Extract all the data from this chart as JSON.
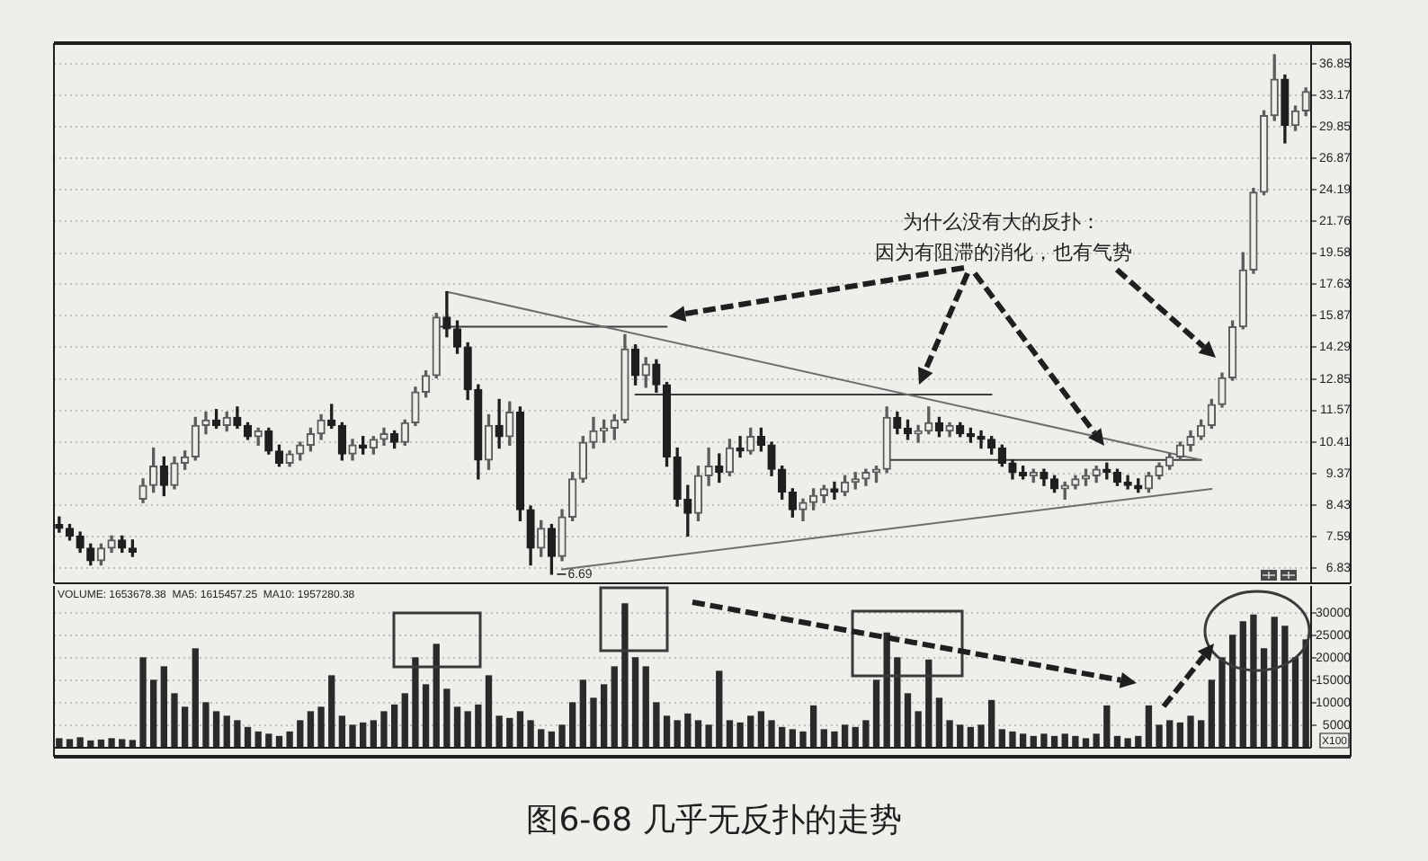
{
  "chart_data": [
    {
      "type": "candlestick",
      "log": true,
      "grid": "y",
      "tick_labels": "y",
      "categories": [
        null,
        null,
        null,
        null,
        null,
        null,
        null,
        null,
        null,
        null,
        null,
        null,
        null,
        null,
        null,
        null,
        null,
        null,
        null,
        null,
        null,
        null,
        null,
        null,
        null,
        null,
        null,
        null,
        null,
        null,
        null,
        null,
        null,
        null,
        null,
        null,
        null,
        null,
        null,
        null,
        null,
        null,
        null,
        null,
        null,
        null,
        null,
        null,
        null,
        null,
        null,
        null,
        null,
        null,
        null,
        null,
        null,
        null,
        null,
        null,
        null,
        null,
        null,
        null,
        null,
        null,
        null,
        null,
        null,
        null,
        null,
        null,
        null,
        null,
        null,
        null,
        null,
        null,
        null,
        null,
        null,
        null,
        null,
        null,
        null,
        null,
        null,
        null,
        null,
        null,
        null,
        null,
        null,
        null,
        null,
        null,
        null,
        null,
        null,
        null,
        null,
        null,
        null,
        null,
        null,
        null,
        null,
        null,
        null,
        null,
        null,
        null,
        null,
        null,
        null,
        null,
        null,
        null,
        null,
        null
      ],
      "ohlc": [
        [
          7.9,
          8.1,
          7.7,
          7.8
        ],
        [
          7.8,
          7.9,
          7.5,
          7.6
        ],
        [
          7.6,
          7.7,
          7.2,
          7.3
        ],
        [
          7.3,
          7.4,
          6.9,
          7.0
        ],
        [
          7.0,
          7.4,
          6.9,
          7.3
        ],
        [
          7.3,
          7.6,
          7.2,
          7.5
        ],
        [
          7.5,
          7.6,
          7.2,
          7.3
        ],
        [
          7.3,
          7.5,
          7.1,
          7.2
        ],
        [
          8.6,
          9.2,
          8.5,
          9.0
        ],
        [
          9.0,
          10.2,
          8.8,
          9.6
        ],
        [
          9.6,
          9.9,
          8.7,
          9.0
        ],
        [
          9.0,
          9.9,
          8.9,
          9.7
        ],
        [
          9.7,
          10.1,
          9.5,
          9.9
        ],
        [
          9.9,
          11.3,
          9.8,
          11.0
        ],
        [
          11.0,
          11.5,
          10.7,
          11.2
        ],
        [
          11.2,
          11.6,
          10.9,
          11.0
        ],
        [
          11.0,
          11.5,
          10.8,
          11.3
        ],
        [
          11.3,
          11.7,
          10.9,
          11.0
        ],
        [
          11.0,
          11.1,
          10.5,
          10.6
        ],
        [
          10.6,
          10.9,
          10.3,
          10.8
        ],
        [
          10.8,
          10.9,
          10.0,
          10.1
        ],
        [
          10.1,
          10.3,
          9.6,
          9.7
        ],
        [
          9.7,
          10.1,
          9.6,
          10.0
        ],
        [
          10.0,
          10.4,
          9.8,
          10.3
        ],
        [
          10.3,
          10.9,
          10.1,
          10.7
        ],
        [
          10.7,
          11.4,
          10.5,
          11.2
        ],
        [
          11.2,
          11.8,
          10.9,
          11.0
        ],
        [
          11.0,
          11.1,
          9.8,
          10.0
        ],
        [
          10.0,
          10.5,
          9.8,
          10.3
        ],
        [
          10.3,
          10.6,
          10.0,
          10.2
        ],
        [
          10.2,
          10.6,
          10.0,
          10.5
        ],
        [
          10.5,
          10.9,
          10.3,
          10.7
        ],
        [
          10.7,
          10.8,
          10.2,
          10.4
        ],
        [
          10.4,
          11.2,
          10.3,
          11.1
        ],
        [
          11.1,
          12.5,
          11.0,
          12.3
        ],
        [
          12.3,
          13.2,
          12.1,
          13.0
        ],
        [
          13.0,
          16.0,
          12.9,
          15.8
        ],
        [
          15.8,
          17.2,
          14.8,
          15.2
        ],
        [
          15.2,
          15.6,
          14.0,
          14.3
        ],
        [
          14.3,
          14.5,
          12.0,
          12.4
        ],
        [
          12.4,
          12.6,
          9.2,
          9.8
        ],
        [
          9.8,
          11.4,
          9.5,
          11.0
        ],
        [
          11.0,
          12.0,
          10.2,
          10.6
        ],
        [
          10.6,
          11.9,
          10.3,
          11.5
        ],
        [
          11.5,
          11.7,
          8.0,
          8.3
        ],
        [
          8.3,
          8.4,
          6.9,
          7.3
        ],
        [
          7.3,
          8.0,
          7.1,
          7.8
        ],
        [
          7.8,
          7.9,
          6.69,
          7.1
        ],
        [
          7.1,
          8.3,
          7.0,
          8.1
        ],
        [
          8.1,
          9.4,
          8.0,
          9.2
        ],
        [
          9.2,
          10.6,
          9.1,
          10.4
        ],
        [
          10.4,
          11.3,
          10.2,
          10.8
        ],
        [
          10.8,
          11.2,
          10.4,
          10.9
        ],
        [
          10.9,
          11.4,
          10.5,
          11.2
        ],
        [
          11.2,
          14.9,
          11.1,
          14.2
        ],
        [
          14.2,
          14.4,
          12.6,
          13.0
        ],
        [
          13.0,
          13.8,
          12.5,
          13.5
        ],
        [
          13.5,
          13.7,
          12.3,
          12.6
        ],
        [
          12.6,
          12.7,
          9.6,
          9.9
        ],
        [
          9.9,
          10.2,
          8.4,
          8.6
        ],
        [
          8.6,
          9.0,
          7.6,
          8.2
        ],
        [
          8.2,
          9.6,
          8.0,
          9.3
        ],
        [
          9.3,
          10.2,
          9.0,
          9.6
        ],
        [
          9.6,
          10.0,
          9.1,
          9.4
        ],
        [
          9.4,
          10.5,
          9.3,
          10.2
        ],
        [
          10.2,
          10.6,
          9.9,
          10.1
        ],
        [
          10.1,
          10.9,
          10.0,
          10.6
        ],
        [
          10.6,
          10.9,
          10.1,
          10.3
        ],
        [
          10.3,
          10.4,
          9.3,
          9.5
        ],
        [
          9.5,
          9.6,
          8.6,
          8.8
        ],
        [
          8.8,
          8.9,
          8.1,
          8.3
        ],
        [
          8.3,
          8.6,
          8.0,
          8.5
        ],
        [
          8.5,
          8.9,
          8.3,
          8.7
        ],
        [
          8.7,
          9.0,
          8.5,
          8.9
        ],
        [
          8.9,
          9.1,
          8.6,
          8.8
        ],
        [
          8.8,
          9.3,
          8.7,
          9.1
        ],
        [
          9.1,
          9.4,
          8.9,
          9.2
        ],
        [
          9.2,
          9.5,
          9.0,
          9.4
        ],
        [
          9.4,
          9.6,
          9.1,
          9.5
        ],
        [
          9.5,
          11.7,
          9.4,
          11.3
        ],
        [
          11.3,
          11.5,
          10.7,
          10.9
        ],
        [
          10.9,
          11.2,
          10.5,
          10.7
        ],
        [
          10.7,
          11.0,
          10.4,
          10.8
        ],
        [
          10.8,
          11.7,
          10.7,
          11.1
        ],
        [
          11.1,
          11.3,
          10.6,
          10.8
        ],
        [
          10.8,
          11.1,
          10.6,
          11.0
        ],
        [
          11.0,
          11.1,
          10.6,
          10.7
        ],
        [
          10.7,
          10.9,
          10.4,
          10.6
        ],
        [
          10.6,
          10.8,
          10.2,
          10.5
        ],
        [
          10.5,
          10.6,
          10.0,
          10.2
        ],
        [
          10.2,
          10.3,
          9.6,
          9.7
        ],
        [
          9.7,
          9.8,
          9.2,
          9.4
        ],
        [
          9.4,
          9.6,
          9.2,
          9.3
        ],
        [
          9.3,
          9.5,
          9.1,
          9.4
        ],
        [
          9.4,
          9.5,
          9.0,
          9.2
        ],
        [
          9.2,
          9.3,
          8.8,
          8.9
        ],
        [
          8.9,
          9.1,
          8.6,
          9.0
        ],
        [
          9.0,
          9.3,
          8.9,
          9.2
        ],
        [
          9.2,
          9.5,
          9.0,
          9.3
        ],
        [
          9.3,
          9.6,
          9.1,
          9.5
        ],
        [
          9.5,
          9.7,
          9.2,
          9.4
        ],
        [
          9.4,
          9.5,
          9.0,
          9.1
        ],
        [
          9.1,
          9.3,
          8.9,
          9.0
        ],
        [
          9.0,
          9.2,
          8.8,
          8.9
        ],
        [
          8.9,
          9.4,
          8.8,
          9.3
        ],
        [
          9.3,
          9.7,
          9.2,
          9.6
        ],
        [
          9.6,
          10.0,
          9.5,
          9.9
        ],
        [
          9.9,
          10.4,
          9.8,
          10.3
        ],
        [
          10.3,
          10.8,
          10.1,
          10.6
        ],
        [
          10.6,
          11.2,
          10.5,
          11.0
        ],
        [
          11.0,
          12.0,
          10.9,
          11.8
        ],
        [
          11.8,
          13.1,
          11.7,
          12.9
        ],
        [
          12.9,
          15.6,
          12.8,
          15.3
        ],
        [
          15.3,
          19.6,
          15.2,
          18.5
        ],
        [
          18.5,
          24.3,
          18.3,
          24.0
        ],
        [
          24.0,
          31.5,
          23.8,
          31.0
        ],
        [
          31.0,
          38.0,
          30.5,
          35.0
        ],
        [
          35.0,
          35.5,
          28.3,
          30.0
        ],
        [
          30.0,
          32.0,
          29.5,
          31.5
        ],
        [
          31.5,
          34.0,
          31.0,
          33.6
        ]
      ],
      "colors": [
        "#1f1f1f",
        "#1f1f1f",
        "#1f1f1f",
        "#1f1f1f",
        "#5c5c5c",
        "#5c5c5c",
        "#1f1f1f",
        "#1f1f1f",
        "#5c5c5c",
        "#5c5c5c",
        "#1f1f1f",
        "#5c5c5c",
        "#5c5c5c",
        "#5c5c5c",
        "#5c5c5c",
        "#1f1f1f",
        "#5c5c5c",
        "#1f1f1f",
        "#1f1f1f",
        "#5c5c5c",
        "#1f1f1f",
        "#1f1f1f",
        "#5c5c5c",
        "#5c5c5c",
        "#5c5c5c",
        "#5c5c5c",
        "#1f1f1f",
        "#1f1f1f",
        "#5c5c5c",
        "#1f1f1f",
        "#5c5c5c",
        "#5c5c5c",
        "#1f1f1f",
        "#5c5c5c",
        "#5c5c5c",
        "#5c5c5c",
        "#5c5c5c",
        "#1f1f1f",
        "#1f1f1f",
        "#1f1f1f",
        "#1f1f1f",
        "#5c5c5c",
        "#1f1f1f",
        "#5c5c5c",
        "#1f1f1f",
        "#1f1f1f",
        "#5c5c5c",
        "#1f1f1f",
        "#5c5c5c",
        "#5c5c5c",
        "#5c5c5c",
        "#5c5c5c",
        "#5c5c5c",
        "#5c5c5c",
        "#5c5c5c",
        "#1f1f1f",
        "#5c5c5c",
        "#1f1f1f",
        "#1f1f1f",
        "#1f1f1f",
        "#1f1f1f",
        "#5c5c5c",
        "#5c5c5c",
        "#1f1f1f",
        "#5c5c5c",
        "#1f1f1f",
        "#5c5c5c",
        "#1f1f1f",
        "#1f1f1f",
        "#1f1f1f",
        "#1f1f1f",
        "#5c5c5c",
        "#5c5c5c",
        "#5c5c5c",
        "#1f1f1f",
        "#5c5c5c",
        "#5c5c5c",
        "#5c5c5c",
        "#5c5c5c",
        "#5c5c5c",
        "#1f1f1f",
        "#1f1f1f",
        "#5c5c5c",
        "#5c5c5c",
        "#1f1f1f",
        "#5c5c5c",
        "#1f1f1f",
        "#1f1f1f",
        "#1f1f1f",
        "#1f1f1f",
        "#1f1f1f",
        "#1f1f1f",
        "#1f1f1f",
        "#5c5c5c",
        "#1f1f1f",
        "#1f1f1f",
        "#5c5c5c",
        "#5c5c5c",
        "#5c5c5c",
        "#5c5c5c",
        "#1f1f1f",
        "#1f1f1f",
        "#1f1f1f",
        "#1f1f1f",
        "#5c5c5c",
        "#5c5c5c",
        "#5c5c5c",
        "#5c5c5c",
        "#5c5c5c",
        "#5c5c5c",
        "#5c5c5c",
        "#5c5c5c",
        "#5c5c5c",
        "#5c5c5c",
        "#5c5c5c",
        "#5c5c5c",
        "#5c5c5c",
        "#1f1f1f",
        "#5c5c5c",
        "#5c5c5c"
      ],
      "series": [
        {
          "type": "line",
          "color": "#6e6e6e",
          "values": [
            null,
            null,
            null,
            null,
            null,
            null,
            null,
            null,
            null,
            null,
            null,
            null,
            null,
            null,
            null,
            null,
            null,
            null,
            null,
            null,
            null,
            null,
            null,
            null,
            null,
            null,
            null,
            null,
            null,
            null,
            null,
            null,
            null,
            null,
            null,
            null,
            null,
            17.2,
            null,
            null,
            null,
            null,
            null,
            null,
            null,
            null,
            null,
            null,
            null,
            null,
            null,
            null,
            null,
            null,
            null,
            null,
            null,
            null,
            null,
            null,
            null,
            null,
            null,
            null,
            null,
            null,
            null,
            null,
            null,
            null,
            null,
            null,
            null,
            null,
            null,
            null,
            null,
            null,
            null,
            null,
            null,
            null,
            null,
            null,
            null,
            null,
            null,
            null,
            null,
            null,
            null,
            null,
            null,
            null,
            null,
            null,
            null,
            null,
            null,
            null,
            null,
            null,
            null,
            null,
            null,
            null,
            null,
            null,
            null,
            9.8,
            null,
            null,
            null,
            null,
            null,
            null,
            null,
            null,
            null,
            null
          ]
        },
        {
          "type": "line",
          "color": "#3c3c3c",
          "values": [
            null,
            null,
            null,
            null,
            null,
            null,
            null,
            null,
            null,
            null,
            null,
            null,
            null,
            null,
            null,
            null,
            null,
            null,
            null,
            null,
            null,
            null,
            null,
            null,
            null,
            null,
            null,
            null,
            null,
            null,
            null,
            null,
            null,
            null,
            null,
            null,
            15.3,
            null,
            null,
            null,
            null,
            null,
            null,
            null,
            null,
            null,
            null,
            null,
            null,
            null,
            null,
            null,
            null,
            null,
            null,
            null,
            null,
            null,
            15.3,
            null,
            null,
            null,
            null,
            null,
            null,
            null,
            null,
            null,
            null,
            null,
            null,
            null,
            null,
            null,
            null,
            null,
            null,
            null,
            null,
            null,
            null,
            null,
            null,
            null,
            null,
            null,
            null,
            null,
            null,
            null,
            null,
            null,
            null,
            null,
            null,
            null,
            null,
            null,
            null,
            null,
            null,
            null,
            null,
            null,
            null,
            null,
            null,
            null,
            null,
            null,
            null,
            null,
            null,
            null,
            null,
            null,
            null,
            null,
            null,
            null
          ]
        },
        {
          "type": "line",
          "color": "#3c3c3c",
          "values": [
            null,
            null,
            null,
            null,
            null,
            null,
            null,
            null,
            null,
            null,
            null,
            null,
            null,
            null,
            null,
            null,
            null,
            null,
            null,
            null,
            null,
            null,
            null,
            null,
            null,
            null,
            null,
            null,
            null,
            null,
            null,
            null,
            null,
            null,
            null,
            null,
            null,
            null,
            null,
            null,
            null,
            null,
            null,
            null,
            null,
            null,
            null,
            null,
            null,
            null,
            null,
            null,
            null,
            null,
            null,
            12.2,
            null,
            null,
            null,
            null,
            null,
            null,
            null,
            null,
            null,
            null,
            null,
            null,
            null,
            null,
            null,
            null,
            null,
            null,
            null,
            null,
            null,
            null,
            null,
            null,
            null,
            null,
            null,
            null,
            null,
            null,
            null,
            null,
            null,
            12.2,
            null,
            null,
            null,
            null,
            null,
            null,
            null,
            null,
            null,
            null,
            null,
            null,
            null,
            null,
            null,
            null,
            null,
            null,
            null,
            null,
            null,
            null,
            null,
            null,
            null,
            null,
            null,
            null,
            null,
            null
          ]
        },
        {
          "type": "line",
          "color": "#3c3c3c",
          "values": [
            null,
            null,
            null,
            null,
            null,
            null,
            null,
            null,
            null,
            null,
            null,
            null,
            null,
            null,
            null,
            null,
            null,
            null,
            null,
            null,
            null,
            null,
            null,
            null,
            null,
            null,
            null,
            null,
            null,
            null,
            null,
            null,
            null,
            null,
            null,
            null,
            null,
            null,
            null,
            null,
            null,
            null,
            null,
            null,
            null,
            null,
            null,
            null,
            null,
            null,
            null,
            null,
            null,
            null,
            null,
            null,
            null,
            null,
            null,
            null,
            null,
            null,
            null,
            null,
            null,
            null,
            null,
            null,
            null,
            null,
            null,
            null,
            null,
            null,
            null,
            null,
            null,
            null,
            null,
            9.8,
            null,
            null,
            null,
            null,
            null,
            null,
            null,
            null,
            null,
            null,
            null,
            null,
            null,
            null,
            null,
            null,
            null,
            null,
            null,
            null,
            null,
            null,
            null,
            null,
            null,
            null,
            null,
            null,
            null,
            9.8,
            null,
            null,
            null,
            null,
            null,
            null,
            null,
            null,
            null,
            null
          ]
        },
        {
          "type": "line",
          "color": "#6e6e6e",
          "values": [
            null,
            null,
            null,
            null,
            null,
            null,
            null,
            null,
            null,
            null,
            null,
            null,
            null,
            null,
            null,
            null,
            null,
            null,
            null,
            null,
            null,
            null,
            null,
            null,
            null,
            null,
            null,
            null,
            null,
            null,
            null,
            null,
            null,
            null,
            null,
            null,
            null,
            null,
            null,
            null,
            null,
            null,
            null,
            null,
            null,
            null,
            null,
            null,
            6.8,
            null,
            null,
            null,
            null,
            null,
            null,
            null,
            null,
            null,
            null,
            null,
            null,
            null,
            null,
            null,
            null,
            null,
            null,
            null,
            null,
            null,
            null,
            null,
            null,
            null,
            null,
            null,
            null,
            null,
            null,
            null,
            null,
            null,
            null,
            null,
            null,
            null,
            null,
            null,
            null,
            null,
            null,
            null,
            null,
            null,
            null,
            null,
            null,
            null,
            null,
            null,
            null,
            null,
            null,
            null,
            null,
            null,
            null,
            null,
            null,
            null,
            8.9,
            null,
            null,
            null,
            null,
            null,
            null,
            null,
            null,
            null
          ]
        }
      ],
      "ylim": [
        6.47,
        39.5
      ],
      "yticks": [
        6.83,
        7.59,
        8.43,
        9.37,
        10.41,
        11.57,
        12.85,
        14.29,
        15.87,
        17.63,
        19.58,
        21.76,
        24.19,
        26.87,
        29.85,
        33.17,
        36.85
      ],
      "annotations": [
        "为什么没有大的反扑：",
        "因为有阻滞的消化，也有气势",
        {
          "text": "6.69",
          "y": 6.69
        }
      ]
    },
    {
      "type": "bar",
      "color": "#2a2a2a",
      "grid": "y",
      "tick_labels": "y",
      "ylabel": "X100",
      "categories": [
        null,
        null,
        null,
        null,
        null,
        null,
        null,
        null,
        null,
        null,
        null,
        null,
        null,
        null,
        null,
        null,
        null,
        null,
        null,
        null,
        null,
        null,
        null,
        null,
        null,
        null,
        null,
        null,
        null,
        null,
        null,
        null,
        null,
        null,
        null,
        null,
        null,
        null,
        null,
        null,
        null,
        null,
        null,
        null,
        null,
        null,
        null,
        null,
        null,
        null,
        null,
        null,
        null,
        null,
        null,
        null,
        null,
        null,
        null,
        null,
        null,
        null,
        null,
        null,
        null,
        null,
        null,
        null,
        null,
        null,
        null,
        null,
        null,
        null,
        null,
        null,
        null,
        null,
        null,
        null,
        null,
        null,
        null,
        null,
        null,
        null,
        null,
        null,
        null,
        null,
        null,
        null,
        null,
        null,
        null,
        null,
        null,
        null,
        null,
        null,
        null,
        null,
        null,
        null,
        null,
        null,
        null,
        null,
        null,
        null,
        null,
        null,
        null,
        null,
        null,
        null,
        null,
        null,
        null,
        null
      ],
      "values": [
        2000,
        1800,
        2200,
        1500,
        1700,
        2000,
        1800,
        1600,
        20000,
        15000,
        18000,
        12000,
        9000,
        22000,
        10000,
        8000,
        7000,
        6000,
        4500,
        3500,
        3000,
        2500,
        3500,
        6000,
        8000,
        9000,
        16000,
        7000,
        5000,
        5500,
        6000,
        8000,
        9500,
        12000,
        20000,
        14000,
        23000,
        13000,
        9000,
        8000,
        9500,
        16000,
        7000,
        6500,
        8000,
        6000,
        4000,
        3500,
        5000,
        10000,
        15000,
        11000,
        14000,
        18000,
        32000,
        20000,
        18000,
        10000,
        7000,
        6000,
        7500,
        6000,
        5000,
        17000,
        6000,
        5500,
        7000,
        8000,
        6000,
        4500,
        4000,
        3500,
        9300,
        4000,
        3500,
        5000,
        4500,
        6000,
        15000,
        25500,
        20000,
        12000,
        8000,
        19500,
        11000,
        6000,
        5000,
        4500,
        5000,
        10500,
        4000,
        3500,
        3000,
        2500,
        3000,
        2500,
        3000,
        2500,
        2000,
        3000,
        9300,
        2500,
        2000,
        2500,
        9300,
        5000,
        6000,
        5500,
        7000,
        6000,
        15000,
        20000,
        25000,
        28000,
        29500,
        22000,
        29000,
        27000,
        20000,
        24000
      ],
      "ylim": [
        0,
        36000
      ],
      "yticks": [
        5000,
        10000,
        15000,
        20000,
        25000,
        30000
      ],
      "annotations": [
        "VOLUME: 1653678.38  MA5: 1615457.25  MA10: 1957280.38",
        "图6-68 几乎无反扑的走势"
      ]
    }
  ]
}
